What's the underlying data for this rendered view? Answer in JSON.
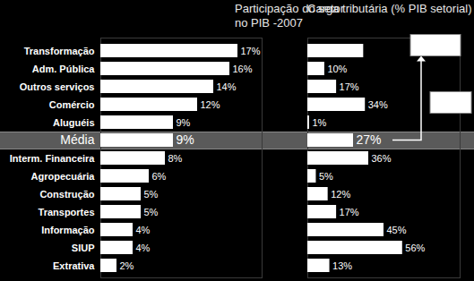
{
  "chart_data": [
    {
      "type": "bar",
      "title": "Participação do setor\nno PIB -2007",
      "orientation": "horizontal",
      "categories": [
        "Transformação",
        "Adm. Pública",
        "Outros serviços",
        "Comércio",
        "Aluguéis",
        "Média",
        "Interm. Financeira",
        "Agropecuária",
        "Construção",
        "Transportes",
        "Informação",
        "SIUP",
        "Extrativa"
      ],
      "values": [
        17,
        16,
        14,
        12,
        9,
        9,
        8,
        6,
        5,
        5,
        4,
        4,
        2
      ],
      "value_labels": [
        "17%",
        "16%",
        "14%",
        "12%",
        "9%",
        "9%",
        "8%",
        "6%",
        "5%",
        "5%",
        "4%",
        "4%",
        "2%"
      ],
      "color": "#ffffff",
      "xlim": [
        0,
        20
      ],
      "xticks": [],
      "data_labels": true,
      "tick_labels": "y",
      "grid": false
    },
    {
      "type": "bar",
      "title": "Carga tributária (% PIB setorial)",
      "orientation": "horizontal",
      "categories": [
        "Transformação",
        "Adm. Pública",
        "Outros serviços",
        "Comércio",
        "Aluguéis",
        "Média",
        "Interm. Financeira",
        "Agropecuária",
        "Construção",
        "Transportes",
        "Informação",
        "SIUP",
        "Extrativa"
      ],
      "values": [
        33,
        10,
        17,
        34,
        1,
        27,
        36,
        5,
        12,
        17,
        45,
        56,
        13
      ],
      "value_labels": [
        null,
        "10%",
        "17%",
        "34%",
        "1%",
        "27%",
        "36%",
        "5%",
        "12%",
        "17%",
        "45%",
        "56%",
        "13%"
      ],
      "color": "#ffffff",
      "xlim": [
        0,
        90
      ],
      "xticks": [],
      "data_labels": true,
      "tick_labels": false,
      "grid": false
    }
  ]
}
